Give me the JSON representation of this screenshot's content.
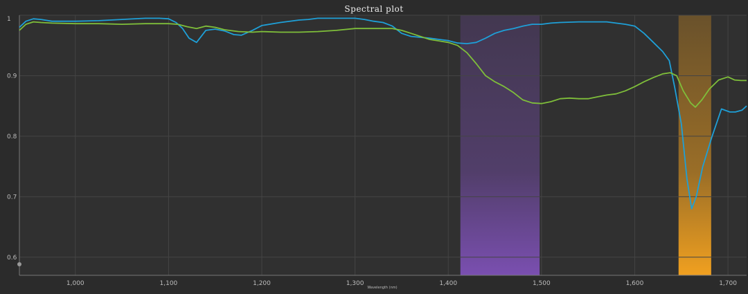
{
  "window": {
    "title": "Spectral plot"
  },
  "colors": {
    "background": "#2b2b2b",
    "plot_background": "#303030",
    "grid": "#444444",
    "series_blue": "#1ea0d8",
    "series_green": "#7fbf3a",
    "band_purple": "#7a4fb0",
    "band_orange": "#f0a020"
  },
  "chart_data": {
    "type": "line",
    "title": "Spectral plot",
    "xlabel": "Wavelength (nm)",
    "ylabel": "",
    "xlim": [
      940,
      1720
    ],
    "ylim": [
      0.57,
      1.0
    ],
    "grid": true,
    "x_ticks": [
      1000,
      1100,
      1200,
      1300,
      1400,
      1500,
      1600,
      1700
    ],
    "x_tick_labels": [
      "1,000",
      "1,100",
      "1,200",
      "1,300",
      "1,400",
      "1,500",
      "1,600",
      "1,700"
    ],
    "y_ticks": [
      0.6,
      0.7,
      0.8,
      0.9,
      1.0
    ],
    "y_tick_labels": [
      "0.6",
      "0.7",
      "0.8",
      "0.9",
      "1"
    ],
    "bands": [
      {
        "x_start": 1413,
        "x_end": 1498,
        "color": "#7a4fb0"
      },
      {
        "x_start": 1647,
        "x_end": 1682,
        "color": "#f0a020"
      }
    ],
    "series": [
      {
        "color": "#1ea0d8",
        "x": [
          940,
          947,
          955,
          963,
          975,
          1000,
          1025,
          1050,
          1075,
          1090,
          1100,
          1108,
          1115,
          1122,
          1130,
          1140,
          1150,
          1160,
          1170,
          1178,
          1190,
          1200,
          1220,
          1240,
          1250,
          1260,
          1280,
          1300,
          1310,
          1320,
          1330,
          1340,
          1350,
          1360,
          1380,
          1400,
          1410,
          1420,
          1430,
          1440,
          1450,
          1460,
          1470,
          1480,
          1490,
          1500,
          1510,
          1520,
          1540,
          1560,
          1570,
          1580,
          1590,
          1600,
          1610,
          1620,
          1630,
          1637,
          1643,
          1650,
          1656,
          1661,
          1666,
          1673,
          1683,
          1693,
          1702,
          1708,
          1715,
          1720
        ],
        "y": [
          0.98,
          0.99,
          0.994,
          0.993,
          0.99,
          0.99,
          0.991,
          0.993,
          0.995,
          0.995,
          0.994,
          0.988,
          0.978,
          0.962,
          0.955,
          0.975,
          0.977,
          0.974,
          0.968,
          0.967,
          0.975,
          0.983,
          0.988,
          0.992,
          0.993,
          0.995,
          0.995,
          0.995,
          0.993,
          0.99,
          0.988,
          0.982,
          0.97,
          0.965,
          0.962,
          0.958,
          0.954,
          0.953,
          0.955,
          0.962,
          0.97,
          0.975,
          0.978,
          0.982,
          0.985,
          0.985,
          0.987,
          0.988,
          0.989,
          0.989,
          0.989,
          0.987,
          0.985,
          0.982,
          0.97,
          0.955,
          0.94,
          0.925,
          0.88,
          0.82,
          0.73,
          0.68,
          0.7,
          0.75,
          0.8,
          0.845,
          0.84,
          0.84,
          0.843,
          0.85
        ]
      },
      {
        "color": "#7fbf3a",
        "x": [
          940,
          947,
          955,
          963,
          975,
          1000,
          1025,
          1050,
          1075,
          1100,
          1110,
          1120,
          1130,
          1140,
          1150,
          1160,
          1175,
          1190,
          1200,
          1220,
          1240,
          1260,
          1280,
          1300,
          1320,
          1340,
          1350,
          1360,
          1380,
          1400,
          1410,
          1420,
          1430,
          1440,
          1450,
          1460,
          1470,
          1480,
          1490,
          1500,
          1510,
          1520,
          1530,
          1540,
          1550,
          1560,
          1570,
          1580,
          1590,
          1600,
          1610,
          1620,
          1630,
          1638,
          1645,
          1652,
          1660,
          1665,
          1672,
          1680,
          1690,
          1700,
          1707,
          1714,
          1720
        ],
        "y": [
          0.975,
          0.985,
          0.989,
          0.988,
          0.987,
          0.986,
          0.986,
          0.985,
          0.986,
          0.986,
          0.985,
          0.981,
          0.978,
          0.982,
          0.98,
          0.976,
          0.973,
          0.972,
          0.973,
          0.972,
          0.972,
          0.973,
          0.975,
          0.978,
          0.978,
          0.978,
          0.975,
          0.97,
          0.96,
          0.955,
          0.95,
          0.938,
          0.92,
          0.9,
          0.89,
          0.882,
          0.872,
          0.86,
          0.855,
          0.854,
          0.857,
          0.862,
          0.863,
          0.862,
          0.862,
          0.865,
          0.868,
          0.87,
          0.875,
          0.882,
          0.89,
          0.897,
          0.903,
          0.905,
          0.9,
          0.875,
          0.855,
          0.848,
          0.86,
          0.878,
          0.893,
          0.898,
          0.893,
          0.892,
          0.892
        ]
      }
    ]
  }
}
